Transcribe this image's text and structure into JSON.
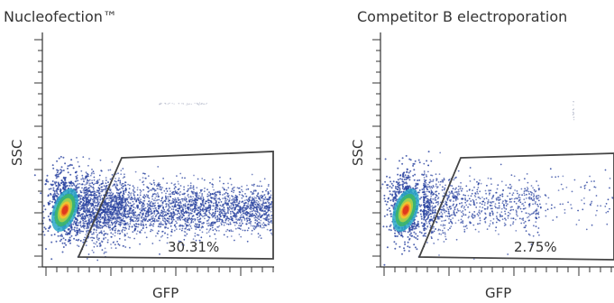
{
  "chart_data": [
    {
      "type": "scatter",
      "title": "Nucleofection™",
      "xlabel": "GFP",
      "ylabel": "SSC",
      "gate_percentage": "30.31%",
      "gate_percent_value": 30.31,
      "grid": false,
      "legend": "none"
    },
    {
      "type": "scatter",
      "title": "Competitor B electroporation",
      "xlabel": "GFP",
      "ylabel": "SSC",
      "gate_percentage": "2.75%",
      "gate_percent_value": 2.75,
      "grid": false,
      "legend": "none"
    }
  ],
  "colors": {
    "dots": "#2b44a0",
    "hot_core": "#e03a1c",
    "mid_core": "#f2c12e",
    "green_core": "#3cb56a",
    "gate": "#444444",
    "axis": "#333333"
  }
}
